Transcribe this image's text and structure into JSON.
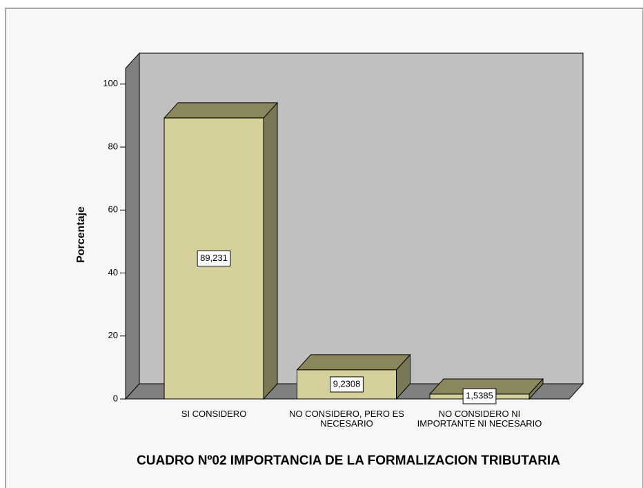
{
  "chart_data": {
    "type": "bar3d",
    "title": "CUADRO Nº02 IMPORTANCIA DE LA FORMALIZACION TRIBUTARIA",
    "y_label": "Porcentaje",
    "categories": [
      "SI CONSIDERO",
      "NO CONSIDERO, PERO ES NECESARIO",
      "NO CONSIDERO NI IMPORTANTE NI NECESARIO"
    ],
    "values": [
      89.231,
      9.2308,
      1.5385
    ],
    "value_labels": [
      "89,231",
      "9,2308",
      "1,5385"
    ],
    "color": "#d6d09a",
    "ylim": [
      0,
      105
    ],
    "yticks": [
      0,
      20,
      40,
      60,
      80,
      100
    ]
  }
}
